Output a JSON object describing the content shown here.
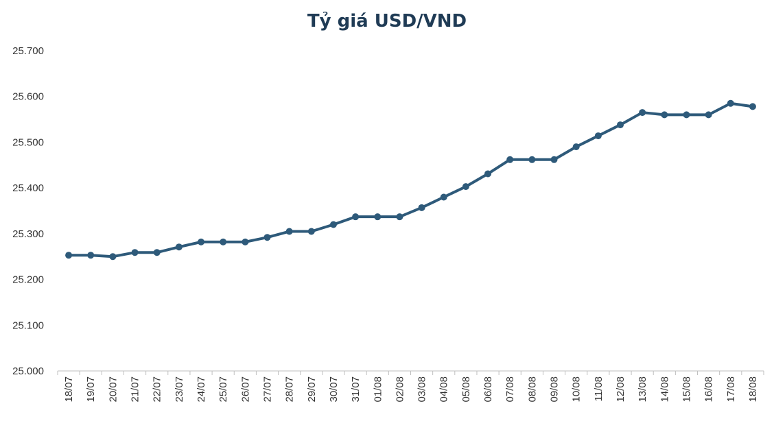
{
  "chart_data": {
    "type": "line",
    "title": "Tỷ giá USD/VND",
    "xlabel": "",
    "ylabel": "",
    "ylim": [
      25000,
      25700
    ],
    "y_ticks": [
      25000,
      25100,
      25200,
      25300,
      25400,
      25500,
      25600,
      25700
    ],
    "y_tick_labels": [
      "25.000",
      "25.100",
      "25.200",
      "25.300",
      "25.400",
      "25.500",
      "25.600",
      "25.700"
    ],
    "grid": false,
    "legend": "none",
    "categories": [
      "18/07",
      "19/07",
      "20/07",
      "21/07",
      "22/07",
      "23/07",
      "24/07",
      "25/07",
      "26/07",
      "27/07",
      "28/07",
      "29/07",
      "30/07",
      "31/07",
      "01/08",
      "02/08",
      "03/08",
      "04/08",
      "05/08",
      "06/08",
      "07/08",
      "08/08",
      "09/08",
      "10/08",
      "11/08",
      "12/08",
      "13/08",
      "14/08",
      "15/08",
      "16/08",
      "17/08",
      "18/08"
    ],
    "series": [
      {
        "color": "#2e5a7a",
        "values": [
          25253,
          25253,
          25250,
          25259,
          25259,
          25271,
          25282,
          25282,
          25282,
          25292,
          25305,
          25305,
          25320,
          25337,
          25337,
          25337,
          25357,
          25380,
          25403,
          25431,
          25462,
          25462,
          25462,
          25490,
          25514,
          25538,
          25565,
          25560,
          25560,
          25560,
          25585,
          25578
        ]
      }
    ]
  },
  "colors": {
    "title": "#1f3b55",
    "line": "#2e5a7a",
    "axis": "#bfbfbf",
    "tick_text": "#333333"
  }
}
